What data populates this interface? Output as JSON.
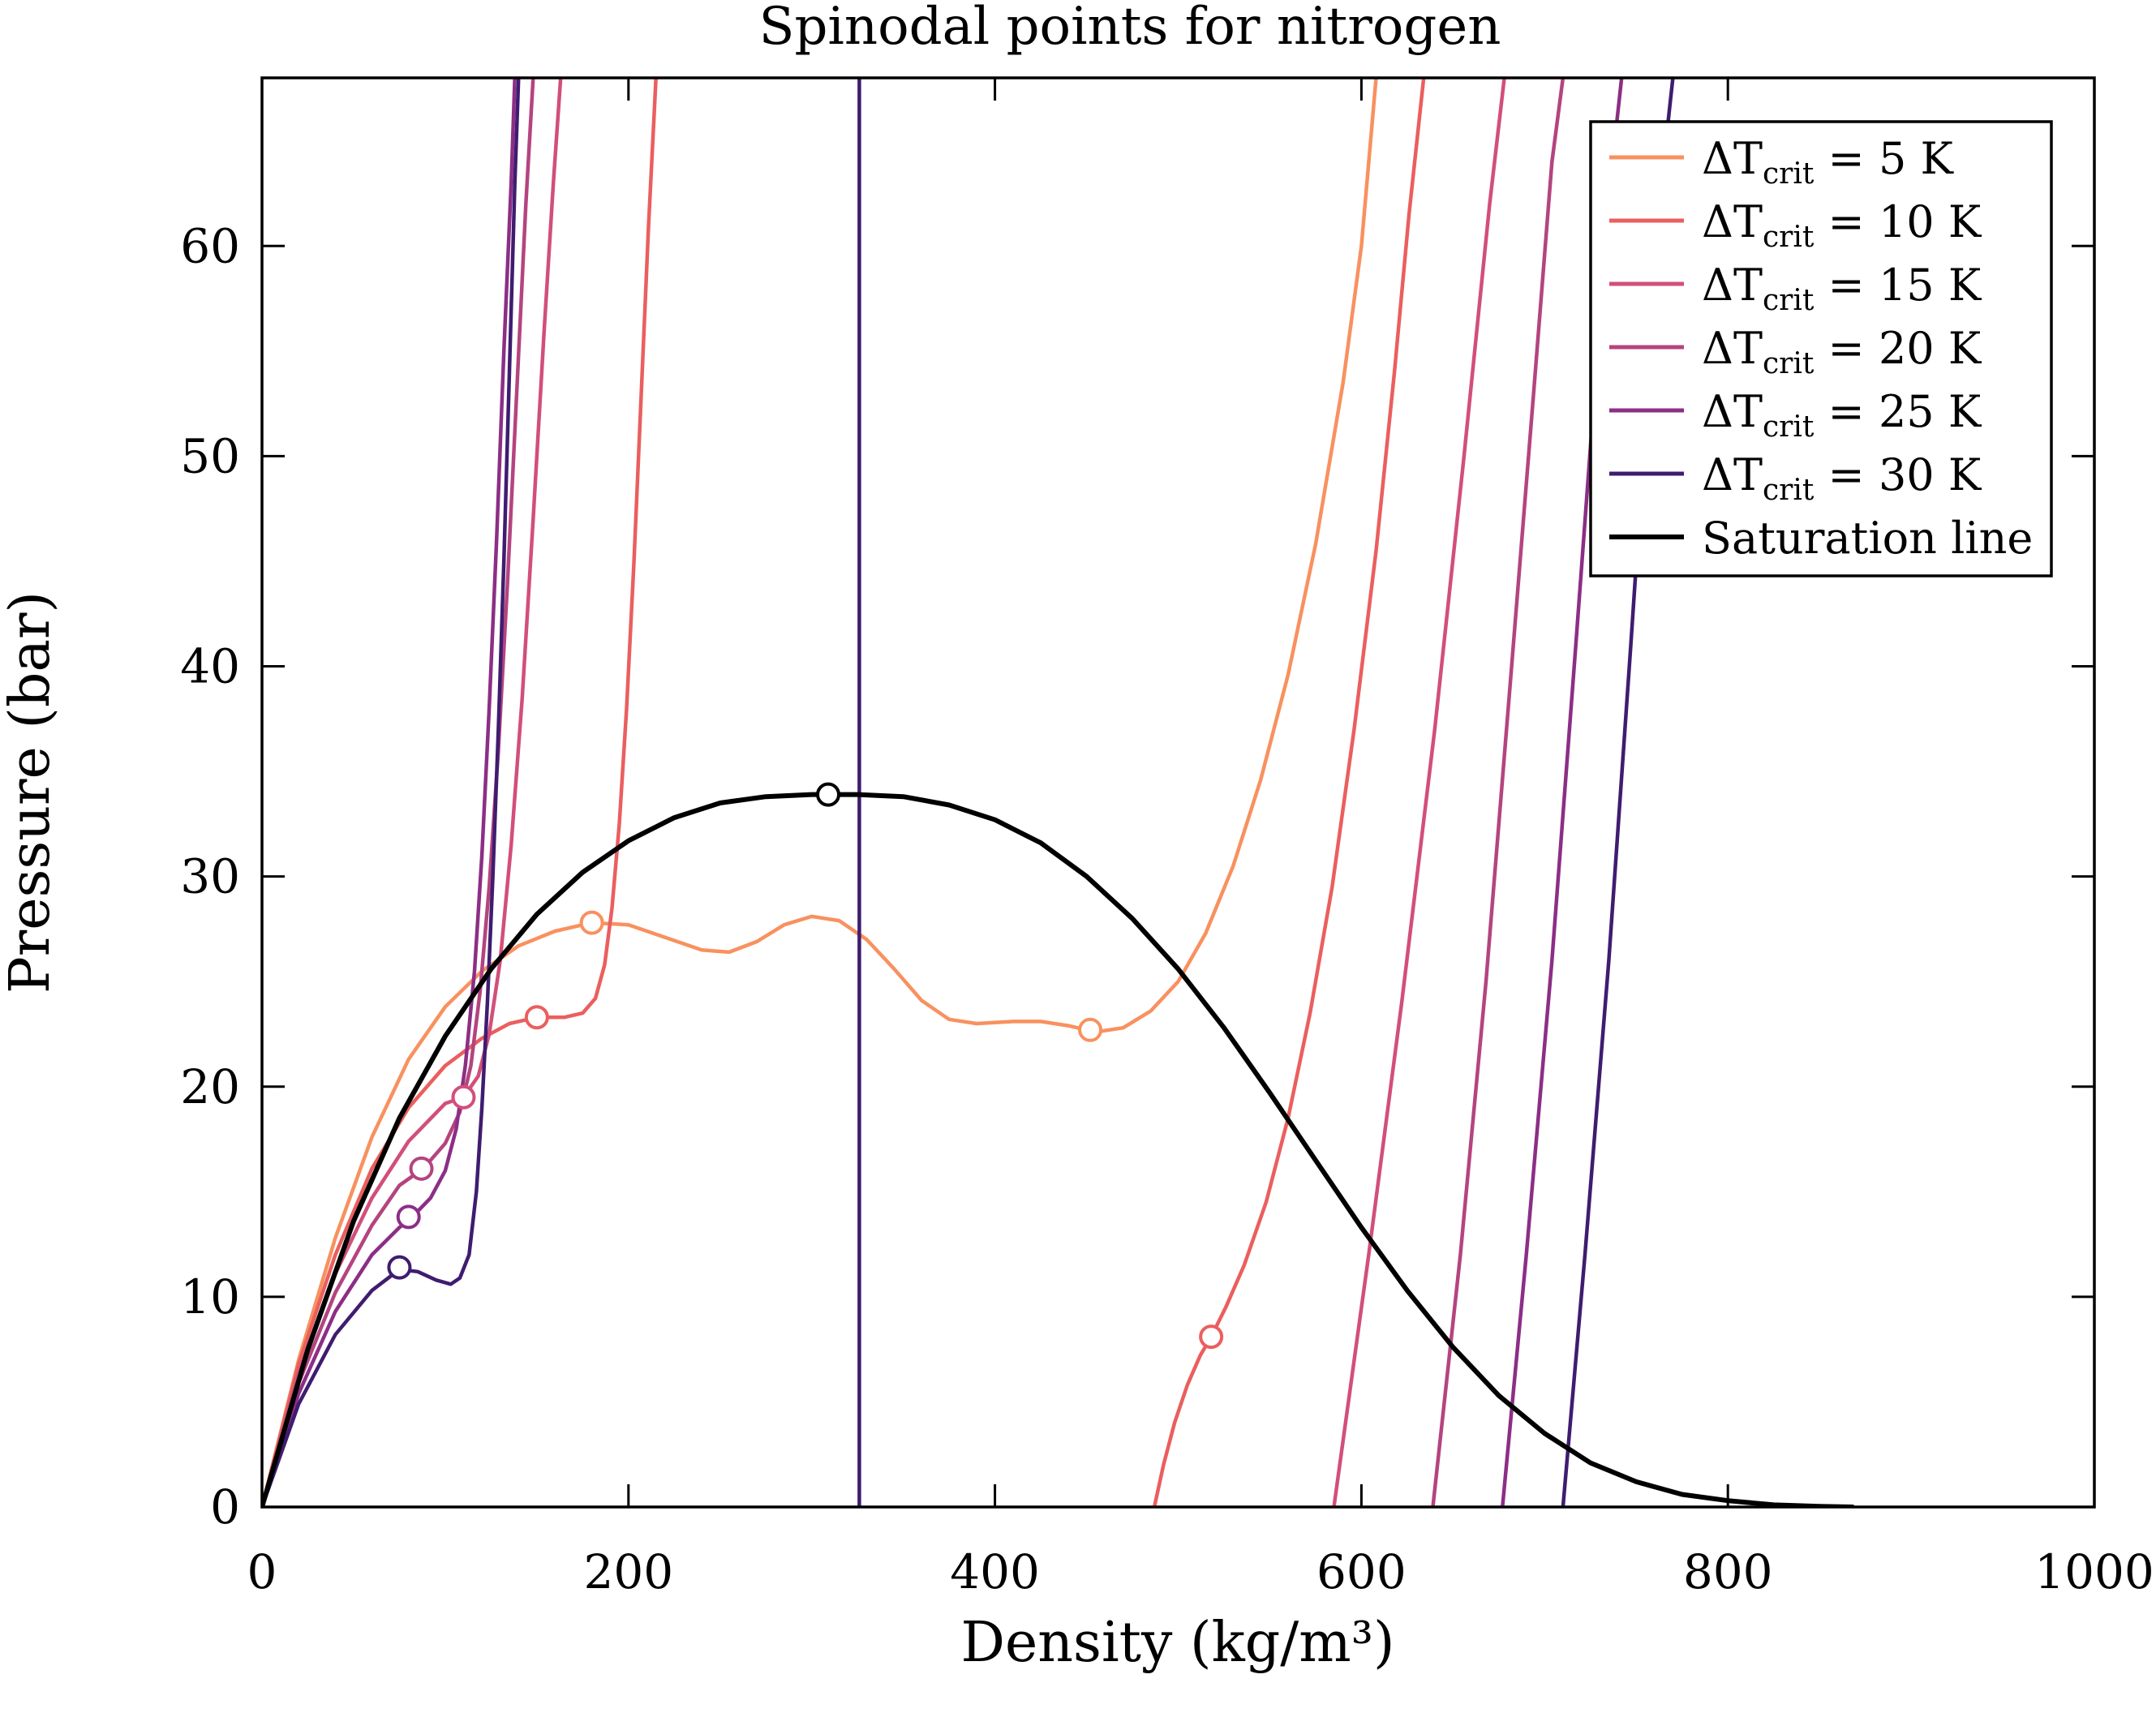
{
  "chart_data": {
    "type": "line",
    "title": "Spinodal points for nitrogen",
    "xlabel": "Density (kg/m³)",
    "ylabel": "Pressure (bar)",
    "xlim": [
      0,
      1000
    ],
    "ylim": [
      0,
      68
    ],
    "xticks": [
      0,
      200,
      400,
      600,
      800,
      1000
    ],
    "yticks": [
      0,
      10,
      20,
      30,
      40,
      50,
      60
    ],
    "grid": false,
    "legend_position": "top-right",
    "series": [
      {
        "name": "ΔT_crit = 5 K",
        "legend_text": "= 5 K",
        "color": "#f8915f",
        "points": [
          [
            0,
            0
          ],
          [
            20,
            7
          ],
          [
            40,
            12.8
          ],
          [
            60,
            17.6
          ],
          [
            80,
            21.3
          ],
          [
            100,
            23.8
          ],
          [
            120,
            25.5
          ],
          [
            140,
            26.7
          ],
          [
            160,
            27.4
          ],
          [
            180,
            27.8
          ],
          [
            200,
            27.7
          ],
          [
            220,
            27.1
          ],
          [
            240,
            26.5
          ],
          [
            255,
            26.4
          ],
          [
            270,
            26.9
          ],
          [
            285,
            27.7
          ],
          [
            300,
            28.1
          ],
          [
            315,
            27.9
          ],
          [
            330,
            27
          ],
          [
            345,
            25.6
          ],
          [
            360,
            24.1
          ],
          [
            375,
            23.2
          ],
          [
            390,
            23
          ],
          [
            410,
            23.1
          ],
          [
            425,
            23.1
          ],
          [
            440,
            22.9
          ],
          [
            455,
            22.6
          ],
          [
            470,
            22.8
          ],
          [
            485,
            23.6
          ],
          [
            500,
            25
          ],
          [
            515,
            27.3
          ],
          [
            530,
            30.5
          ],
          [
            545,
            34.6
          ],
          [
            560,
            39.6
          ],
          [
            575,
            45.8
          ],
          [
            590,
            53.5
          ],
          [
            600,
            60
          ],
          [
            608,
            68
          ]
        ]
      },
      {
        "name": "ΔT_crit = 10 K",
        "legend_text": "= 10 K",
        "color": "#ea5f5e",
        "segments": [
          [
            [
              0,
              0
            ],
            [
              20,
              6.8
            ],
            [
              40,
              12
            ],
            [
              60,
              16.1
            ],
            [
              80,
              19
            ],
            [
              100,
              21
            ],
            [
              120,
              22.3
            ],
            [
              135,
              23
            ],
            [
              150,
              23.3
            ],
            [
              165,
              23.3
            ],
            [
              175,
              23.5
            ],
            [
              182,
              24.2
            ],
            [
              187,
              25.8
            ],
            [
              191,
              28.5
            ],
            [
              195,
              32.5
            ],
            [
              199,
              38
            ],
            [
              203,
              45
            ],
            [
              207,
              53
            ],
            [
              211,
              61
            ],
            [
              215,
              68
            ]
          ],
          [
            [
              487,
              0
            ],
            [
              492,
              2
            ],
            [
              498,
              4
            ],
            [
              505,
              5.8
            ],
            [
              512,
              7.2
            ],
            [
              518,
              8.1
            ],
            [
              526,
              9.5
            ],
            [
              536,
              11.5
            ],
            [
              548,
              14.5
            ],
            [
              560,
              18.5
            ],
            [
              572,
              23.5
            ],
            [
              584,
              29.5
            ],
            [
              596,
              37
            ],
            [
              608,
              45.5
            ],
            [
              618,
              54
            ],
            [
              626,
              61.5
            ],
            [
              634,
              68
            ]
          ]
        ]
      },
      {
        "name": "ΔT_crit = 15 K",
        "legend_text": "= 15 K",
        "color": "#d24f7a",
        "segments": [
          [
            [
              0,
              0
            ],
            [
              20,
              6.4
            ],
            [
              40,
              11.1
            ],
            [
              60,
              14.7
            ],
            [
              80,
              17.4
            ],
            [
              100,
              19.2
            ],
            [
              110,
              19.5
            ],
            [
              118,
              20.5
            ],
            [
              124,
              22.5
            ],
            [
              130,
              26
            ],
            [
              136,
              31.5
            ],
            [
              142,
              38.5
            ],
            [
              148,
              47
            ],
            [
              154,
              56
            ],
            [
              159,
              63
            ],
            [
              163,
              68
            ]
          ],
          [
            [
              585,
              0
            ],
            [
              604,
              12
            ],
            [
              622,
              24
            ],
            [
              640,
              37
            ],
            [
              656,
              50
            ],
            [
              670,
              62
            ],
            [
              678,
              68
            ]
          ]
        ]
      },
      {
        "name": "ΔT_crit = 20 K",
        "legend_text": "= 20 K",
        "color": "#b4447f",
        "segments": [
          [
            [
              0,
              0
            ],
            [
              20,
              5.9
            ],
            [
              40,
              10.2
            ],
            [
              60,
              13.4
            ],
            [
              75,
              15.3
            ],
            [
              88,
              16.1
            ],
            [
              100,
              17.3
            ],
            [
              108,
              18.8
            ],
            [
              114,
              21
            ],
            [
              119,
              24.5
            ],
            [
              124,
              29.5
            ],
            [
              129,
              36
            ],
            [
              134,
              44
            ],
            [
              139,
              53
            ],
            [
              144,
              62
            ],
            [
              148,
              68
            ]
          ],
          [
            [
              639,
              0
            ],
            [
              654,
              12
            ],
            [
              668,
              25
            ],
            [
              682,
              40
            ],
            [
              694,
              53
            ],
            [
              704,
              64
            ],
            [
              710,
              68
            ]
          ]
        ]
      },
      {
        "name": "ΔT_crit = 25 K",
        "legend_text": "= 25 K",
        "color": "#8c2e86",
        "segments": [
          [
            [
              0,
              0
            ],
            [
              20,
              5.4
            ],
            [
              40,
              9.3
            ],
            [
              60,
              12
            ],
            [
              75,
              13.3
            ],
            [
              82,
              13.8
            ],
            [
              92,
              14.7
            ],
            [
              100,
              16
            ],
            [
              106,
              18
            ],
            [
              111,
              21
            ],
            [
              116,
              25.5
            ],
            [
              120,
              31
            ],
            [
              124,
              38
            ],
            [
              128,
              46
            ],
            [
              132,
              55
            ],
            [
              136,
              63
            ],
            [
              138,
              68
            ]
          ],
          [
            [
              677,
              0
            ],
            [
              690,
              12
            ],
            [
              704,
              26
            ],
            [
              717,
              41
            ],
            [
              728,
              54
            ],
            [
              737,
              64
            ],
            [
              742,
              68
            ]
          ]
        ]
      },
      {
        "name": "ΔT_crit = 30 K",
        "legend_text": "= 30 K",
        "color": "#3f1c70",
        "segments": [
          [
            [
              0,
              0
            ],
            [
              20,
              4.9
            ],
            [
              40,
              8.2
            ],
            [
              60,
              10.3
            ],
            [
              75,
              11.3
            ],
            [
              85,
              11.2
            ],
            [
              95,
              10.8
            ],
            [
              103,
              10.6
            ],
            [
              108,
              10.9
            ],
            [
              113,
              12
            ],
            [
              117,
              15
            ],
            [
              120,
              19
            ],
            [
              123,
              24
            ],
            [
              126,
              30
            ],
            [
              129,
              37
            ],
            [
              132,
              45
            ],
            [
              135,
              54
            ],
            [
              138,
              63
            ],
            [
              140,
              68
            ]
          ],
          [
            [
              326,
              0
            ],
            [
              326,
              68
            ]
          ],
          [
            [
              710,
              0
            ],
            [
              722,
              12
            ],
            [
              735,
              26
            ],
            [
              747,
              41
            ],
            [
              757,
              54
            ],
            [
              765,
              64
            ],
            [
              770,
              68
            ]
          ]
        ]
      },
      {
        "name": "Saturation line",
        "legend_text": "Saturation line",
        "color": "#000000",
        "points": [
          [
            0,
            0
          ],
          [
            25,
            7.5
          ],
          [
            50,
            13.6
          ],
          [
            75,
            18.5
          ],
          [
            100,
            22.4
          ],
          [
            125,
            25.6
          ],
          [
            150,
            28.2
          ],
          [
            175,
            30.2
          ],
          [
            200,
            31.7
          ],
          [
            225,
            32.8
          ],
          [
            250,
            33.5
          ],
          [
            275,
            33.8
          ],
          [
            300,
            33.9
          ],
          [
            325,
            33.9
          ],
          [
            350,
            33.8
          ],
          [
            375,
            33.4
          ],
          [
            400,
            32.7
          ],
          [
            425,
            31.6
          ],
          [
            450,
            30
          ],
          [
            475,
            28
          ],
          [
            500,
            25.6
          ],
          [
            525,
            22.8
          ],
          [
            550,
            19.7
          ],
          [
            575,
            16.5
          ],
          [
            600,
            13.3
          ],
          [
            625,
            10.3
          ],
          [
            650,
            7.6
          ],
          [
            675,
            5.3
          ],
          [
            700,
            3.5
          ],
          [
            725,
            2.1
          ],
          [
            750,
            1.2
          ],
          [
            775,
            0.6
          ],
          [
            800,
            0.3
          ],
          [
            825,
            0.1
          ],
          [
            850,
            0.03
          ],
          [
            868,
            0
          ]
        ]
      }
    ],
    "markers": [
      {
        "series": "ΔT_crit = 5 K",
        "color": "#f8915f",
        "points": [
          [
            180,
            27.8
          ],
          [
            452,
            22.7
          ]
        ]
      },
      {
        "series": "ΔT_crit = 10 K",
        "color": "#ea5f5e",
        "points": [
          [
            150,
            23.3
          ],
          [
            518,
            8.1
          ]
        ]
      },
      {
        "series": "ΔT_crit = 15 K",
        "color": "#d24f7a",
        "points": [
          [
            110,
            19.5
          ]
        ]
      },
      {
        "series": "ΔT_crit = 20 K",
        "color": "#b4447f",
        "points": [
          [
            87,
            16.1
          ]
        ]
      },
      {
        "series": "ΔT_crit = 25 K",
        "color": "#8c2e86",
        "points": [
          [
            80,
            13.8
          ]
        ]
      },
      {
        "series": "ΔT_crit = 30 K",
        "color": "#3f1c70",
        "points": [
          [
            75,
            11.4
          ]
        ]
      },
      {
        "series": "Saturation line",
        "color": "#000000",
        "points": [
          [
            309,
            33.9
          ]
        ]
      }
    ]
  }
}
